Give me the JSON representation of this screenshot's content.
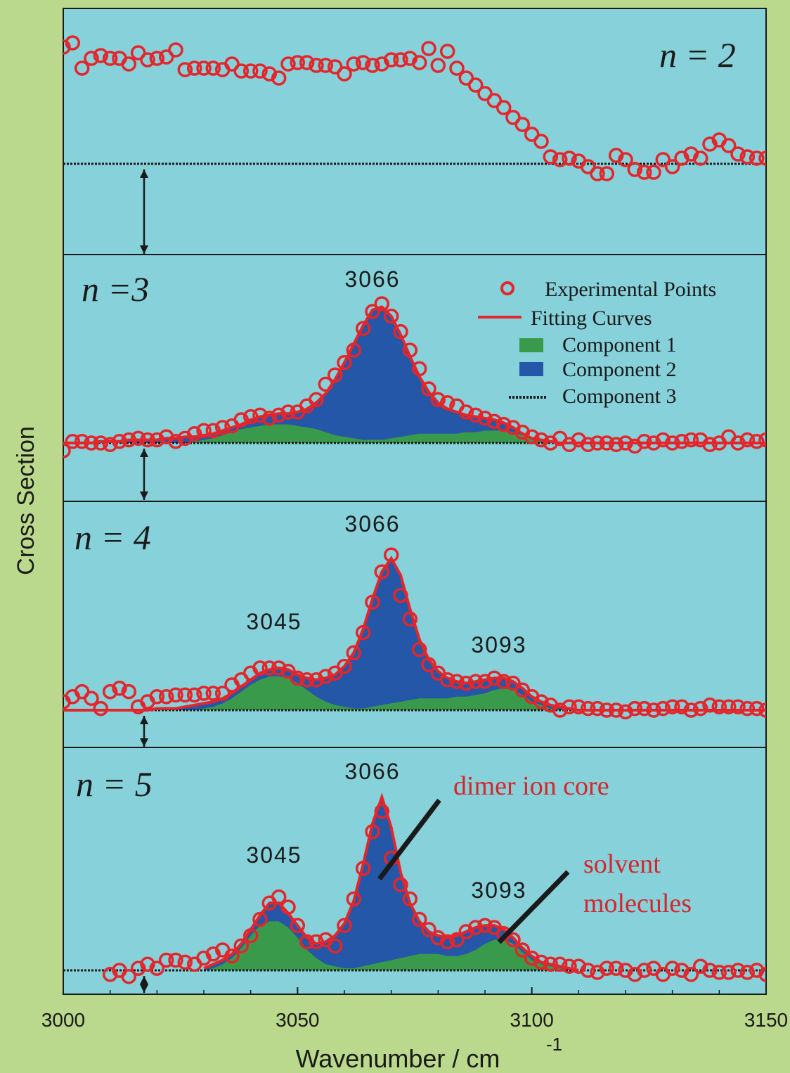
{
  "colors": {
    "background": "#bad98c",
    "panel": "#86d1da",
    "points": "#e3262b",
    "fit": "#e3262b",
    "component1": "#3a9a4b",
    "component2": "#2557a8",
    "component3": "#1a1a1a",
    "annotation_text": "#d6262b"
  },
  "chart_data": {
    "type": "line",
    "xlabel": "Wavenumber / cm",
    "xlabel_superscript": "-1",
    "ylabel": "Cross Section",
    "xlim": [
      3000,
      3150
    ],
    "x_ticks": [
      "3000",
      "3050",
      "3100",
      "3150"
    ],
    "grid": false,
    "legend": {
      "placement": "top-right of n = 3 panel",
      "entries": [
        {
          "symbol": "circle",
          "label": "Experimental Points"
        },
        {
          "symbol": "line",
          "label": "Fitting Curves"
        },
        {
          "symbol": "green-box",
          "label": "Component 1"
        },
        {
          "symbol": "blue-box",
          "label": "Component 2"
        },
        {
          "symbol": "dotted",
          "label": "Component 3"
        }
      ]
    },
    "panels": [
      {
        "label": "n = 2",
        "baseline_offset": 0.0,
        "peak_labels": [],
        "points_x": [
          3000,
          3002,
          3004,
          3006,
          3008,
          3010,
          3012,
          3014,
          3016,
          3018,
          3020,
          3022,
          3024,
          3026,
          3028,
          3030,
          3032,
          3034,
          3036,
          3038,
          3040,
          3042,
          3044,
          3046,
          3048,
          3050,
          3052,
          3054,
          3056,
          3058,
          3060,
          3062,
          3064,
          3066,
          3068,
          3070,
          3072,
          3074,
          3076,
          3078,
          3080,
          3082,
          3084,
          3086,
          3088,
          3090,
          3092,
          3094,
          3096,
          3098,
          3100,
          3102,
          3104,
          3106,
          3108,
          3110,
          3112,
          3114,
          3116,
          3118,
          3120,
          3122,
          3124,
          3126,
          3128,
          3130,
          3132,
          3134,
          3136,
          3138,
          3140,
          3142,
          3144,
          3146,
          3148,
          3150
        ],
        "points_y": [
          0.83,
          0.86,
          0.68,
          0.75,
          0.77,
          0.75,
          0.75,
          0.71,
          0.79,
          0.74,
          0.75,
          0.76,
          0.81,
          0.67,
          0.68,
          0.68,
          0.68,
          0.67,
          0.71,
          0.66,
          0.66,
          0.66,
          0.64,
          0.61,
          0.71,
          0.72,
          0.72,
          0.7,
          0.7,
          0.69,
          0.64,
          0.71,
          0.72,
          0.7,
          0.71,
          0.74,
          0.74,
          0.75,
          0.72,
          0.82,
          0.7,
          0.8,
          0.68,
          0.61,
          0.56,
          0.5,
          0.45,
          0.4,
          0.33,
          0.28,
          0.21,
          0.16,
          0.05,
          0.03,
          0.04,
          0.02,
          -0.02,
          -0.07,
          -0.07,
          0.06,
          0.03,
          -0.04,
          -0.06,
          -0.06,
          0.03,
          -0.02,
          0.04,
          0.07,
          0.04,
          0.14,
          0.17,
          0.13,
          0.07,
          0.05,
          0.04,
          0.04
        ]
      },
      {
        "label": "n =3",
        "baseline_offset": 0.0,
        "peak_labels": [
          {
            "x": 3066,
            "text": "3066"
          }
        ],
        "points_x": [
          3000,
          3002,
          3004,
          3006,
          3008,
          3010,
          3012,
          3014,
          3016,
          3018,
          3020,
          3022,
          3024,
          3026,
          3028,
          3030,
          3032,
          3034,
          3036,
          3038,
          3040,
          3042,
          3044,
          3046,
          3048,
          3050,
          3052,
          3054,
          3056,
          3058,
          3060,
          3062,
          3064,
          3066,
          3068,
          3070,
          3072,
          3074,
          3076,
          3078,
          3080,
          3082,
          3084,
          3086,
          3088,
          3090,
          3092,
          3094,
          3096,
          3098,
          3100,
          3102,
          3104,
          3106,
          3108,
          3110,
          3112,
          3114,
          3116,
          3118,
          3120,
          3122,
          3124,
          3126,
          3128,
          3130,
          3132,
          3134,
          3136,
          3138,
          3140,
          3142,
          3144,
          3146,
          3148,
          3150
        ],
        "points_y": [
          -0.05,
          0.01,
          0.01,
          0.0,
          0.0,
          -0.01,
          0.01,
          0.02,
          0.03,
          0.02,
          0.02,
          0.04,
          0.01,
          0.03,
          0.06,
          0.08,
          0.08,
          0.1,
          0.11,
          0.15,
          0.17,
          0.18,
          0.16,
          0.18,
          0.2,
          0.2,
          0.24,
          0.28,
          0.38,
          0.44,
          0.52,
          0.6,
          0.74,
          0.85,
          0.9,
          0.82,
          0.72,
          0.6,
          0.48,
          0.35,
          0.28,
          0.26,
          0.24,
          0.2,
          0.18,
          0.16,
          0.14,
          0.12,
          0.1,
          0.07,
          0.04,
          0.02,
          0.0,
          0.03,
          -0.01,
          0.02,
          -0.01,
          0.0,
          0.0,
          -0.01,
          0.0,
          -0.02,
          0.01,
          0.0,
          0.02,
          0.0,
          0.01,
          0.02,
          0.02,
          -0.01,
          0.0,
          0.04,
          0.0,
          0.02,
          0.01,
          0.02
        ],
        "fit_y": [
          0.0,
          0.0,
          0.0,
          0.0,
          0.01,
          0.01,
          0.01,
          0.02,
          0.02,
          0.02,
          0.02,
          0.03,
          0.03,
          0.04,
          0.04,
          0.05,
          0.06,
          0.08,
          0.1,
          0.12,
          0.15,
          0.17,
          0.18,
          0.19,
          0.19,
          0.2,
          0.22,
          0.26,
          0.32,
          0.41,
          0.52,
          0.64,
          0.76,
          0.86,
          0.88,
          0.82,
          0.7,
          0.56,
          0.43,
          0.33,
          0.26,
          0.22,
          0.2,
          0.18,
          0.17,
          0.16,
          0.15,
          0.13,
          0.1,
          0.06,
          0.03,
          0.02,
          0.01,
          0.0,
          0.0,
          0.0,
          0.0,
          0.0,
          0.0,
          0.0,
          0.0,
          0.0,
          0.0,
          0.0,
          0.0,
          0.0,
          0.0,
          0.0,
          0.0,
          0.0,
          0.0,
          0.0,
          0.0,
          0.0,
          0.0,
          0.0
        ],
        "component1_y": [
          0.0,
          0.0,
          0.0,
          0.0,
          0.0,
          0.0,
          0.0,
          0.0,
          0.0,
          0.0,
          0.0,
          0.0,
          0.0,
          0.0,
          0.01,
          0.02,
          0.03,
          0.05,
          0.07,
          0.09,
          0.1,
          0.11,
          0.12,
          0.12,
          0.12,
          0.11,
          0.1,
          0.09,
          0.07,
          0.05,
          0.04,
          0.03,
          0.02,
          0.02,
          0.02,
          0.03,
          0.04,
          0.05,
          0.06,
          0.06,
          0.06,
          0.06,
          0.06,
          0.07,
          0.07,
          0.08,
          0.08,
          0.08,
          0.07,
          0.05,
          0.03,
          0.02,
          0.01,
          0.0,
          0.0,
          0.0,
          0.0,
          0.0,
          0.0,
          0.0,
          0.0,
          0.0,
          0.0,
          0.0,
          0.0,
          0.0,
          0.0,
          0.0,
          0.0,
          0.0,
          0.0,
          0.0,
          0.0,
          0.0,
          0.0,
          0.0
        ]
      },
      {
        "label": "n = 4",
        "baseline_offset": 0.0,
        "peak_labels": [
          {
            "x": 3045,
            "text": "3045"
          },
          {
            "x": 3066,
            "text": "3066"
          },
          {
            "x": 3093,
            "text": "3093"
          }
        ],
        "points_x": [
          3000,
          3002,
          3004,
          3006,
          3008,
          3010,
          3012,
          3014,
          3016,
          3018,
          3020,
          3022,
          3024,
          3026,
          3028,
          3030,
          3032,
          3034,
          3036,
          3038,
          3040,
          3042,
          3044,
          3046,
          3048,
          3050,
          3052,
          3054,
          3056,
          3058,
          3060,
          3062,
          3064,
          3066,
          3068,
          3070,
          3072,
          3074,
          3076,
          3078,
          3080,
          3082,
          3084,
          3086,
          3088,
          3090,
          3092,
          3094,
          3096,
          3098,
          3100,
          3102,
          3104,
          3106,
          3108,
          3110,
          3112,
          3114,
          3116,
          3118,
          3120,
          3122,
          3124,
          3126,
          3128,
          3130,
          3132,
          3134,
          3136,
          3138,
          3140,
          3142,
          3144,
          3146,
          3148,
          3150
        ],
        "points_y": [
          0.05,
          0.08,
          0.11,
          0.07,
          0.01,
          0.11,
          0.13,
          0.11,
          0.02,
          0.05,
          0.08,
          0.08,
          0.09,
          0.09,
          0.09,
          0.1,
          0.1,
          0.1,
          0.15,
          0.18,
          0.22,
          0.25,
          0.25,
          0.25,
          0.23,
          0.19,
          0.18,
          0.18,
          0.2,
          0.22,
          0.26,
          0.34,
          0.46,
          0.64,
          0.82,
          0.92,
          0.68,
          0.54,
          0.36,
          0.27,
          0.22,
          0.18,
          0.17,
          0.16,
          0.17,
          0.17,
          0.19,
          0.17,
          0.16,
          0.12,
          0.08,
          0.05,
          0.03,
          0.0,
          0.02,
          0.02,
          0.01,
          0.01,
          0.0,
          0.0,
          -0.01,
          0.01,
          0.01,
          0.0,
          0.01,
          0.02,
          0.02,
          0.0,
          0.01,
          0.03,
          0.02,
          0.02,
          0.02,
          0.01,
          0.01,
          0.0
        ],
        "fit_y": [
          0.0,
          0.0,
          0.0,
          0.0,
          0.0,
          0.0,
          0.0,
          0.0,
          0.0,
          0.0,
          0.01,
          0.01,
          0.01,
          0.02,
          0.03,
          0.04,
          0.05,
          0.07,
          0.1,
          0.14,
          0.18,
          0.22,
          0.24,
          0.25,
          0.24,
          0.21,
          0.19,
          0.18,
          0.19,
          0.21,
          0.26,
          0.34,
          0.48,
          0.66,
          0.82,
          0.9,
          0.8,
          0.6,
          0.42,
          0.3,
          0.23,
          0.19,
          0.17,
          0.16,
          0.17,
          0.18,
          0.19,
          0.19,
          0.17,
          0.13,
          0.08,
          0.05,
          0.03,
          0.02,
          0.01,
          0.0,
          0.0,
          0.0,
          0.0,
          0.0,
          0.0,
          0.0,
          0.0,
          0.0,
          0.0,
          0.0,
          0.0,
          0.0,
          0.0,
          0.0,
          0.0,
          0.0,
          0.0,
          0.0,
          0.0,
          0.0
        ],
        "component1_y": [
          0.0,
          0.0,
          0.0,
          0.0,
          0.0,
          0.0,
          0.0,
          0.0,
          0.0,
          0.0,
          0.0,
          0.0,
          0.0,
          0.0,
          0.0,
          0.01,
          0.02,
          0.04,
          0.07,
          0.11,
          0.15,
          0.18,
          0.2,
          0.2,
          0.19,
          0.16,
          0.12,
          0.08,
          0.05,
          0.03,
          0.02,
          0.01,
          0.01,
          0.02,
          0.03,
          0.04,
          0.05,
          0.06,
          0.07,
          0.07,
          0.07,
          0.07,
          0.08,
          0.08,
          0.09,
          0.1,
          0.12,
          0.13,
          0.12,
          0.09,
          0.05,
          0.03,
          0.01,
          0.0,
          0.0,
          0.0,
          0.0,
          0.0,
          0.0,
          0.0,
          0.0,
          0.0,
          0.0,
          0.0,
          0.0,
          0.0,
          0.0,
          0.0,
          0.0,
          0.0,
          0.0,
          0.0,
          0.0,
          0.0,
          0.0,
          0.0
        ]
      },
      {
        "label": "n = 5",
        "baseline_offset": 0.0,
        "peak_labels": [
          {
            "x": 3045,
            "text": "3045"
          },
          {
            "x": 3066,
            "text": "3066"
          },
          {
            "x": 3093,
            "text": "3093"
          }
        ],
        "annotations": [
          {
            "text": "dimer ion core"
          },
          {
            "text": "solvent"
          },
          {
            "text": "molecules"
          }
        ],
        "points_x": [
          3010,
          3012,
          3014,
          3016,
          3018,
          3020,
          3022,
          3024,
          3026,
          3028,
          3030,
          3032,
          3034,
          3036,
          3038,
          3040,
          3042,
          3044,
          3046,
          3048,
          3050,
          3052,
          3054,
          3056,
          3058,
          3060,
          3062,
          3064,
          3066,
          3068,
          3070,
          3072,
          3074,
          3076,
          3078,
          3080,
          3082,
          3084,
          3086,
          3088,
          3090,
          3092,
          3094,
          3096,
          3098,
          3100,
          3102,
          3104,
          3106,
          3108,
          3110,
          3112,
          3114,
          3116,
          3118,
          3120,
          3122,
          3124,
          3126,
          3128,
          3130,
          3132,
          3134,
          3136,
          3138,
          3140,
          3142,
          3144,
          3146,
          3148,
          3150
        ],
        "points_y": [
          -0.02,
          0.0,
          -0.03,
          0.01,
          0.03,
          0.01,
          0.05,
          0.05,
          0.04,
          0.03,
          0.06,
          0.08,
          0.1,
          0.07,
          0.12,
          0.17,
          0.25,
          0.33,
          0.36,
          0.31,
          0.22,
          0.14,
          0.14,
          0.15,
          0.12,
          0.22,
          0.35,
          0.5,
          0.68,
          0.78,
          0.55,
          0.42,
          0.35,
          0.25,
          0.2,
          0.16,
          0.14,
          0.15,
          0.19,
          0.21,
          0.22,
          0.21,
          0.18,
          0.15,
          0.1,
          0.06,
          0.04,
          0.03,
          0.03,
          0.02,
          0.02,
          0.0,
          -0.01,
          0.01,
          0.01,
          0.0,
          -0.02,
          0.0,
          0.01,
          -0.02,
          0.01,
          0.0,
          -0.02,
          0.02,
          0.0,
          -0.01,
          -0.01,
          0.0,
          -0.01,
          0.0,
          -0.02
        ],
        "fit_x": [
          3030,
          3032,
          3034,
          3036,
          3038,
          3040,
          3042,
          3044,
          3046,
          3048,
          3050,
          3052,
          3054,
          3056,
          3058,
          3060,
          3062,
          3064,
          3066,
          3068,
          3070,
          3072,
          3074,
          3076,
          3078,
          3080,
          3082,
          3084,
          3086,
          3088,
          3090,
          3092,
          3094,
          3096,
          3098,
          3100,
          3102,
          3104,
          3106,
          3108,
          3110
        ],
        "fit_y": [
          0.01,
          0.03,
          0.05,
          0.08,
          0.13,
          0.2,
          0.27,
          0.33,
          0.33,
          0.28,
          0.22,
          0.16,
          0.13,
          0.14,
          0.17,
          0.23,
          0.34,
          0.52,
          0.72,
          0.85,
          0.7,
          0.48,
          0.33,
          0.24,
          0.19,
          0.17,
          0.16,
          0.17,
          0.19,
          0.21,
          0.22,
          0.22,
          0.2,
          0.16,
          0.11,
          0.07,
          0.04,
          0.03,
          0.02,
          0.01,
          0.0
        ],
        "component1_y": [
          0.0,
          0.01,
          0.03,
          0.06,
          0.11,
          0.17,
          0.22,
          0.24,
          0.24,
          0.21,
          0.16,
          0.1,
          0.06,
          0.03,
          0.02,
          0.01,
          0.01,
          0.02,
          0.03,
          0.04,
          0.05,
          0.06,
          0.07,
          0.08,
          0.08,
          0.08,
          0.07,
          0.07,
          0.08,
          0.1,
          0.13,
          0.15,
          0.15,
          0.13,
          0.09,
          0.05,
          0.03,
          0.02,
          0.01,
          0.0,
          0.0
        ]
      }
    ]
  }
}
